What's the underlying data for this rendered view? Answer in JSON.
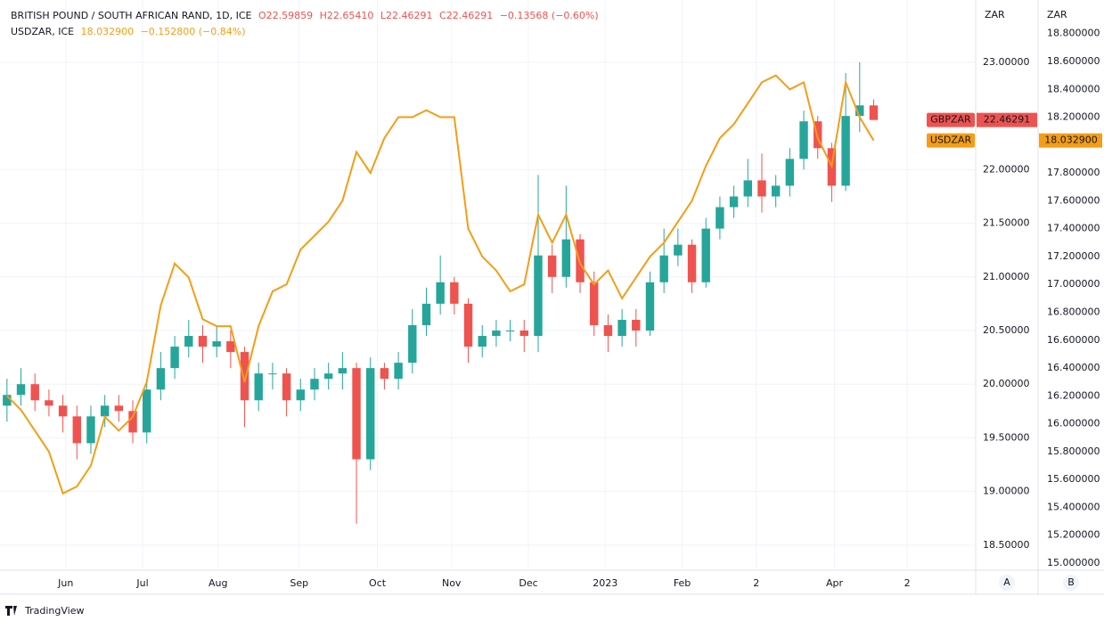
{
  "chart_data": {
    "type": "candlestick",
    "title": "BRITISH POUND / SOUTH AFRICAN RAND, 1D, ICE",
    "ohlc_text": [
      "O22.59859",
      "H22.65410",
      "L22.46291",
      "C22.46291",
      "−0.13568 (−0.60%)"
    ],
    "x": [
      0,
      1,
      2,
      3,
      4,
      5,
      6,
      7,
      8,
      9,
      10,
      11,
      12,
      13,
      14,
      15,
      16,
      17,
      18,
      19,
      20,
      21,
      22,
      23,
      24,
      25,
      26,
      27,
      28,
      29,
      30,
      31,
      32,
      33,
      34,
      35,
      36,
      37,
      38,
      39,
      40,
      41,
      42,
      43,
      44,
      45,
      46,
      47,
      48,
      49,
      50,
      51,
      52,
      53,
      54,
      55,
      56,
      57,
      58,
      59,
      60,
      61,
      62
    ],
    "xlim": [
      -0.5,
      69.3
    ],
    "xticks": [
      {
        "value": 4.2,
        "label": "Jun"
      },
      {
        "value": 9.7,
        "label": "Jul"
      },
      {
        "value": 15.1,
        "label": "Aug"
      },
      {
        "value": 20.9,
        "label": "Sep"
      },
      {
        "value": 26.5,
        "label": "Oct"
      },
      {
        "value": 31.8,
        "label": "Nov"
      },
      {
        "value": 37.3,
        "label": "Dec"
      },
      {
        "value": 42.8,
        "label": "2023"
      },
      {
        "value": 48.3,
        "label": "Feb"
      },
      {
        "value": 53.6,
        "label": "2"
      },
      {
        "value": 59.2,
        "label": "Apr"
      },
      {
        "value": 64.4,
        "label": "2"
      }
    ],
    "ylim": [
      18.266,
      23.581
    ],
    "yticks": [
      {
        "value": 18.5,
        "label": "18.50000"
      },
      {
        "value": 19,
        "label": "19.00000"
      },
      {
        "value": 19.5,
        "label": "19.50000"
      },
      {
        "value": 20,
        "label": "20.00000"
      },
      {
        "value": 20.5,
        "label": "20.50000"
      },
      {
        "value": 21,
        "label": "21.00000"
      },
      {
        "value": 21.5,
        "label": "21.50000"
      },
      {
        "value": 22,
        "label": "22.00000"
      },
      {
        "value": 23,
        "label": "23.00000"
      }
    ],
    "y2lim": [
      14.949,
      19.041
    ],
    "y2ticks": [
      {
        "value": 15,
        "label": "15.000000"
      },
      {
        "value": 15.2,
        "label": "15.200000"
      },
      {
        "value": 15.4,
        "label": "15.400000"
      },
      {
        "value": 15.6,
        "label": "15.600000"
      },
      {
        "value": 15.8,
        "label": "15.800000"
      },
      {
        "value": 16,
        "label": "16.000000"
      },
      {
        "value": 16.2,
        "label": "16.200000"
      },
      {
        "value": 16.4,
        "label": "16.400000"
      },
      {
        "value": 16.6,
        "label": "16.600000"
      },
      {
        "value": 16.8,
        "label": "16.800000"
      },
      {
        "value": 17,
        "label": "17.000000"
      },
      {
        "value": 17.2,
        "label": "17.200000"
      },
      {
        "value": 17.4,
        "label": "17.400000"
      },
      {
        "value": 17.6,
        "label": "17.600000"
      },
      {
        "value": 17.8,
        "label": "17.800000"
      },
      {
        "value": 18.2,
        "label": "18.200000"
      },
      {
        "value": 18.4,
        "label": "18.400000"
      },
      {
        "value": 18.6,
        "label": "18.600000"
      },
      {
        "value": 18.8,
        "label": "18.800000"
      }
    ],
    "y_unit": "ZAR",
    "y2_unit": "ZAR",
    "scale_buttons": [
      "A",
      "B"
    ],
    "brand": "TradingView",
    "grid": true,
    "series": [
      {
        "name": "GBPZAR",
        "type": "candlestick",
        "color": "#ef5350",
        "up_color": "#26a69a",
        "down_color": "#ef5350",
        "open": [
          19.8,
          19.9,
          20.0,
          19.85,
          19.8,
          19.7,
          19.45,
          19.7,
          19.8,
          19.75,
          19.55,
          19.95,
          20.15,
          20.35,
          20.45,
          20.35,
          20.4,
          20.3,
          19.85,
          20.1,
          20.1,
          19.85,
          19.95,
          20.05,
          20.1,
          20.15,
          19.3,
          20.15,
          20.05,
          20.2,
          20.55,
          20.75,
          20.95,
          20.75,
          20.35,
          20.45,
          20.5,
          20.5,
          20.45,
          21.2,
          21.0,
          21.35,
          20.95,
          20.55,
          20.45,
          20.6,
          20.5,
          20.95,
          21.2,
          21.3,
          20.95,
          21.45,
          21.65,
          21.75,
          21.9,
          21.75,
          21.85,
          22.1,
          22.45,
          22.2,
          21.85,
          22.5,
          22.59859
        ],
        "high": [
          20.05,
          20.15,
          20.1,
          19.95,
          19.9,
          19.8,
          19.8,
          19.9,
          19.9,
          19.85,
          20.05,
          20.3,
          20.45,
          20.6,
          20.55,
          20.55,
          20.5,
          20.35,
          20.2,
          20.2,
          20.15,
          20.05,
          20.15,
          20.2,
          20.3,
          20.2,
          20.25,
          20.2,
          20.3,
          20.7,
          20.9,
          21.2,
          21.0,
          20.8,
          20.55,
          20.6,
          20.6,
          20.6,
          21.95,
          21.3,
          21.85,
          21.4,
          21.05,
          20.65,
          20.7,
          20.7,
          21.05,
          21.45,
          21.45,
          21.35,
          21.55,
          21.75,
          21.85,
          22.1,
          22.15,
          21.95,
          22.2,
          22.55,
          22.5,
          22.25,
          22.9,
          23.0,
          22.6541
        ],
        "low": [
          19.65,
          19.8,
          19.75,
          19.7,
          19.55,
          19.3,
          19.35,
          19.6,
          19.65,
          19.45,
          19.45,
          19.85,
          20.05,
          20.25,
          20.2,
          20.25,
          20.15,
          19.6,
          19.75,
          19.95,
          19.7,
          19.75,
          19.85,
          19.95,
          19.95,
          18.7,
          19.2,
          19.95,
          19.95,
          20.1,
          20.45,
          20.65,
          20.65,
          20.2,
          20.25,
          20.35,
          20.4,
          20.3,
          20.3,
          20.85,
          20.9,
          20.85,
          20.45,
          20.3,
          20.35,
          20.35,
          20.45,
          20.85,
          21.1,
          20.85,
          20.9,
          21.35,
          21.55,
          21.65,
          21.6,
          21.65,
          21.75,
          22.0,
          22.1,
          21.7,
          21.8,
          22.35,
          22.46291
        ],
        "close": [
          19.9,
          20.0,
          19.85,
          19.8,
          19.7,
          19.45,
          19.7,
          19.8,
          19.75,
          19.55,
          19.95,
          20.15,
          20.35,
          20.45,
          20.35,
          20.4,
          20.3,
          19.85,
          20.1,
          20.1,
          19.85,
          19.95,
          20.05,
          20.1,
          20.15,
          19.3,
          20.15,
          20.05,
          20.2,
          20.55,
          20.75,
          20.95,
          20.75,
          20.35,
          20.45,
          20.5,
          20.5,
          20.45,
          21.2,
          21.0,
          21.35,
          20.95,
          20.55,
          20.45,
          20.6,
          20.5,
          20.95,
          21.2,
          21.3,
          20.95,
          21.45,
          21.65,
          21.75,
          21.9,
          21.75,
          21.85,
          22.1,
          22.45,
          22.2,
          21.85,
          22.5,
          22.59859,
          22.46291
        ]
      },
      {
        "name": "USDZAR",
        "type": "line",
        "axis": "y2",
        "color": "#f59d16",
        "title": "USDZAR, ICE",
        "last_label": "18.032900",
        "change_text": "−0.152800 (−0.84%)",
        "values": [
          16.2,
          16.1,
          15.95,
          15.8,
          15.5,
          15.55,
          15.7,
          16.05,
          15.95,
          16.05,
          16.3,
          16.85,
          17.15,
          17.05,
          16.75,
          16.7,
          16.7,
          16.3,
          16.7,
          16.95,
          17.0,
          17.25,
          17.35,
          17.45,
          17.6,
          17.95,
          17.8,
          18.05,
          18.2,
          18.2,
          18.25,
          18.2,
          18.2,
          17.4,
          17.2,
          17.1,
          16.95,
          17.0,
          17.5,
          17.3,
          17.5,
          17.15,
          17.0,
          17.1,
          16.9,
          17.05,
          17.2,
          17.3,
          17.45,
          17.6,
          17.85,
          18.05,
          18.15,
          18.3,
          18.45,
          18.5,
          18.4,
          18.45,
          18.05,
          17.85,
          18.45,
          18.2,
          18.0329
        ]
      }
    ]
  }
}
